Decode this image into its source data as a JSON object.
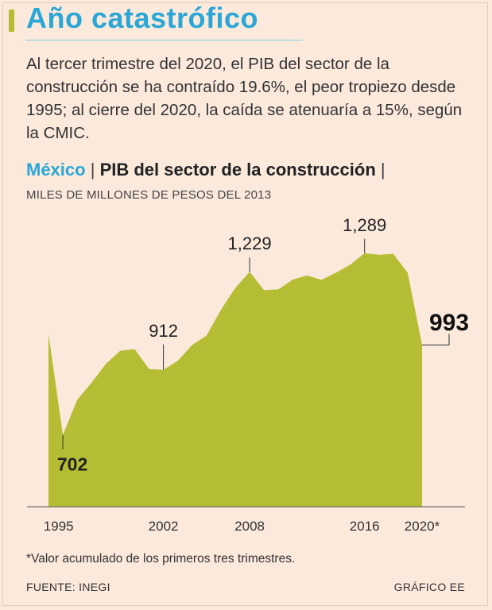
{
  "header": {
    "title": "Año catastrófico",
    "intro": "Al tercer trimestre del 2020, el PIB del sector de la construcción se ha contraído 19.6%, el peor tropiezo desde 1995; al cierre del 2020, la caída se atenuaría a 15%, según la CMIC."
  },
  "colors": {
    "background": "#fbe9dc",
    "area": "#b5bd34",
    "title": "#2aa7d6"
  },
  "chart_data": {
    "type": "area",
    "country": "México",
    "title": "PIB del sector de la construcción",
    "separator": "|",
    "ylabel": "MILES DE MILLONES DE PESOS DEL 2013",
    "x_tick_labels": [
      "1995",
      "2002",
      "2008",
      "2016",
      "2020*"
    ],
    "x_tick_years": [
      1994.7,
      2002,
      2008,
      2016,
      2020
    ],
    "ylim": [
      470,
      1440
    ],
    "grid": false,
    "legend": "none",
    "x": [
      1994,
      1995,
      1996,
      1997,
      1998,
      1999,
      2000,
      2001,
      2002,
      2003,
      2004,
      2005,
      2006,
      2007,
      2008,
      2009,
      2010,
      2011,
      2012,
      2013,
      2014,
      2015,
      2016,
      2017,
      2018,
      2019,
      2020
    ],
    "values": [
      1029,
      702,
      816,
      871,
      932,
      974,
      979,
      915,
      912,
      942,
      993,
      1023,
      1106,
      1177,
      1229,
      1170,
      1172,
      1204,
      1217,
      1203,
      1226,
      1252,
      1289,
      1284,
      1287,
      1226,
      993
    ],
    "labels": [
      {
        "year": 1995,
        "value": "702",
        "bold": true
      },
      {
        "year": 2002,
        "value": "912",
        "bold": false
      },
      {
        "year": 2008,
        "value": "1,229",
        "bold": false
      },
      {
        "year": 2016,
        "value": "1,289",
        "bold": false
      },
      {
        "year": 2020,
        "value": "993",
        "bold": true
      }
    ]
  },
  "footer": {
    "note": "*Valor acumulado de los primeros tres trimestres.",
    "source": "FUENTE: INEGI",
    "credit": "GRÁFICO EE"
  }
}
